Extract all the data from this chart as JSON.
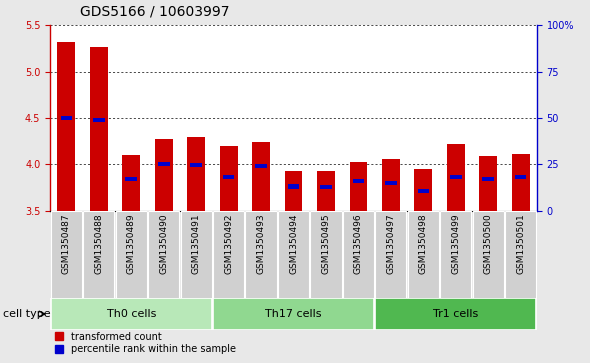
{
  "title": "GDS5166 / 10603997",
  "samples": [
    "GSM1350487",
    "GSM1350488",
    "GSM1350489",
    "GSM1350490",
    "GSM1350491",
    "GSM1350492",
    "GSM1350493",
    "GSM1350494",
    "GSM1350495",
    "GSM1350496",
    "GSM1350497",
    "GSM1350498",
    "GSM1350499",
    "GSM1350500",
    "GSM1350501"
  ],
  "bar_values": [
    5.32,
    5.27,
    4.1,
    4.27,
    4.29,
    4.2,
    4.24,
    3.93,
    3.93,
    4.02,
    4.06,
    3.95,
    4.22,
    4.09,
    4.11
  ],
  "percentile_values": [
    4.5,
    4.48,
    3.84,
    4.0,
    3.99,
    3.86,
    3.98,
    3.76,
    3.75,
    3.82,
    3.8,
    3.71,
    3.86,
    3.84,
    3.86
  ],
  "ylim": [
    3.5,
    5.5
  ],
  "yticks": [
    3.5,
    4.0,
    4.5,
    5.0,
    5.5
  ],
  "right_yticks": [
    0,
    25,
    50,
    75,
    100
  ],
  "right_ytick_labels": [
    "0",
    "25",
    "50",
    "75",
    "100%"
  ],
  "cell_groups": [
    {
      "label": "Th0 cells",
      "start": 0,
      "end": 5,
      "color": "#b8e8b8"
    },
    {
      "label": "Th17 cells",
      "start": 5,
      "end": 10,
      "color": "#90d890"
    },
    {
      "label": "Tr1 cells",
      "start": 10,
      "end": 15,
      "color": "#50b850"
    }
  ],
  "bar_color": "#cc0000",
  "percentile_color": "#0000cc",
  "bar_width": 0.55,
  "background_color": "#e8e8e8",
  "plot_background": "#ffffff",
  "left_axis_color": "#cc0000",
  "right_axis_color": "#0000cc",
  "tick_bg_color": "#d0d0d0",
  "legend_items": [
    {
      "label": "transformed count",
      "color": "#cc0000"
    },
    {
      "label": "percentile rank within the sample",
      "color": "#0000cc"
    }
  ],
  "cell_type_label": "cell type",
  "title_fontsize": 10,
  "tick_fontsize": 7,
  "label_fontsize": 8,
  "group_label_fontsize": 8
}
